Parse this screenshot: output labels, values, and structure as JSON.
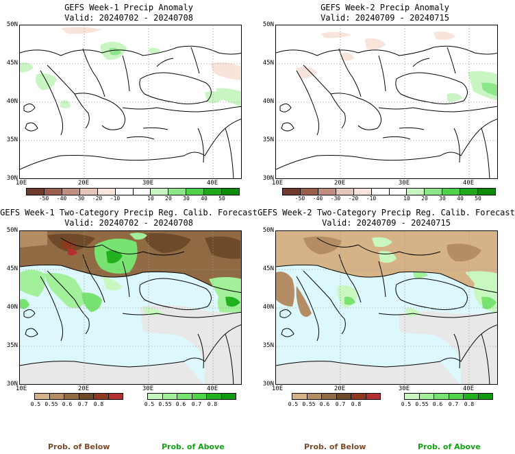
{
  "panels": [
    {
      "line1": "GEFS Week-1 Precip Anomaly",
      "line2": "Valid: 20240702 - 20240708"
    },
    {
      "line1": "GEFS Week-2 Precip Anomaly",
      "line2": "Valid: 20240709 - 20240715"
    },
    {
      "line1": "GEFS Week-1 Two-Category Precip Reg. Calib. Forecast",
      "line2": "Valid: 20240702 - 20240708"
    },
    {
      "line1": "GEFS Week-2 Two-Category Precip Reg. Calib. Forecast",
      "line2": "Valid: 20240709 - 20240715"
    }
  ],
  "lat_labels": [
    "50N",
    "45N",
    "40N",
    "35N",
    "30N"
  ],
  "lon_labels": [
    "10E",
    "20E",
    "30E",
    "40E"
  ],
  "anomaly_scale": {
    "labels": [
      "-50",
      "-40",
      "-30",
      "-20",
      "-10",
      "10",
      "20",
      "30",
      "40",
      "50"
    ],
    "colors": [
      "#6e3b2c",
      "#9a5e4c",
      "#c08f80",
      "#e5c6b8",
      "#f8e4da",
      "#ffffff",
      "#ffffff",
      "#c9f5c3",
      "#8ee68a",
      "#4fd14a",
      "#1fa81a",
      "#0e8a0a"
    ]
  },
  "below_scale": {
    "labels": [
      "0.5",
      "0.55",
      "0.6",
      "0.7",
      "0.8"
    ],
    "colors": [
      "#d6b387",
      "#b58d64",
      "#8f6a43",
      "#6e4a2a",
      "#8c3a1f",
      "#b43030"
    ]
  },
  "above_scale": {
    "labels": [
      "0.5",
      "0.55",
      "0.6",
      "0.7",
      "0.8"
    ],
    "colors": [
      "#c8f8c0",
      "#a2f09a",
      "#78e370",
      "#4fd44a",
      "#22b21f",
      "#0e9a0c"
    ]
  },
  "legend": {
    "below": "Prob. of Below",
    "above": "Prob. of Above",
    "below_color": "#7a4a2a",
    "above_color": "#14a014"
  },
  "colors": {
    "sea_forecast": "#dcf8fc",
    "no_signal_land": "#e8e8e8"
  }
}
